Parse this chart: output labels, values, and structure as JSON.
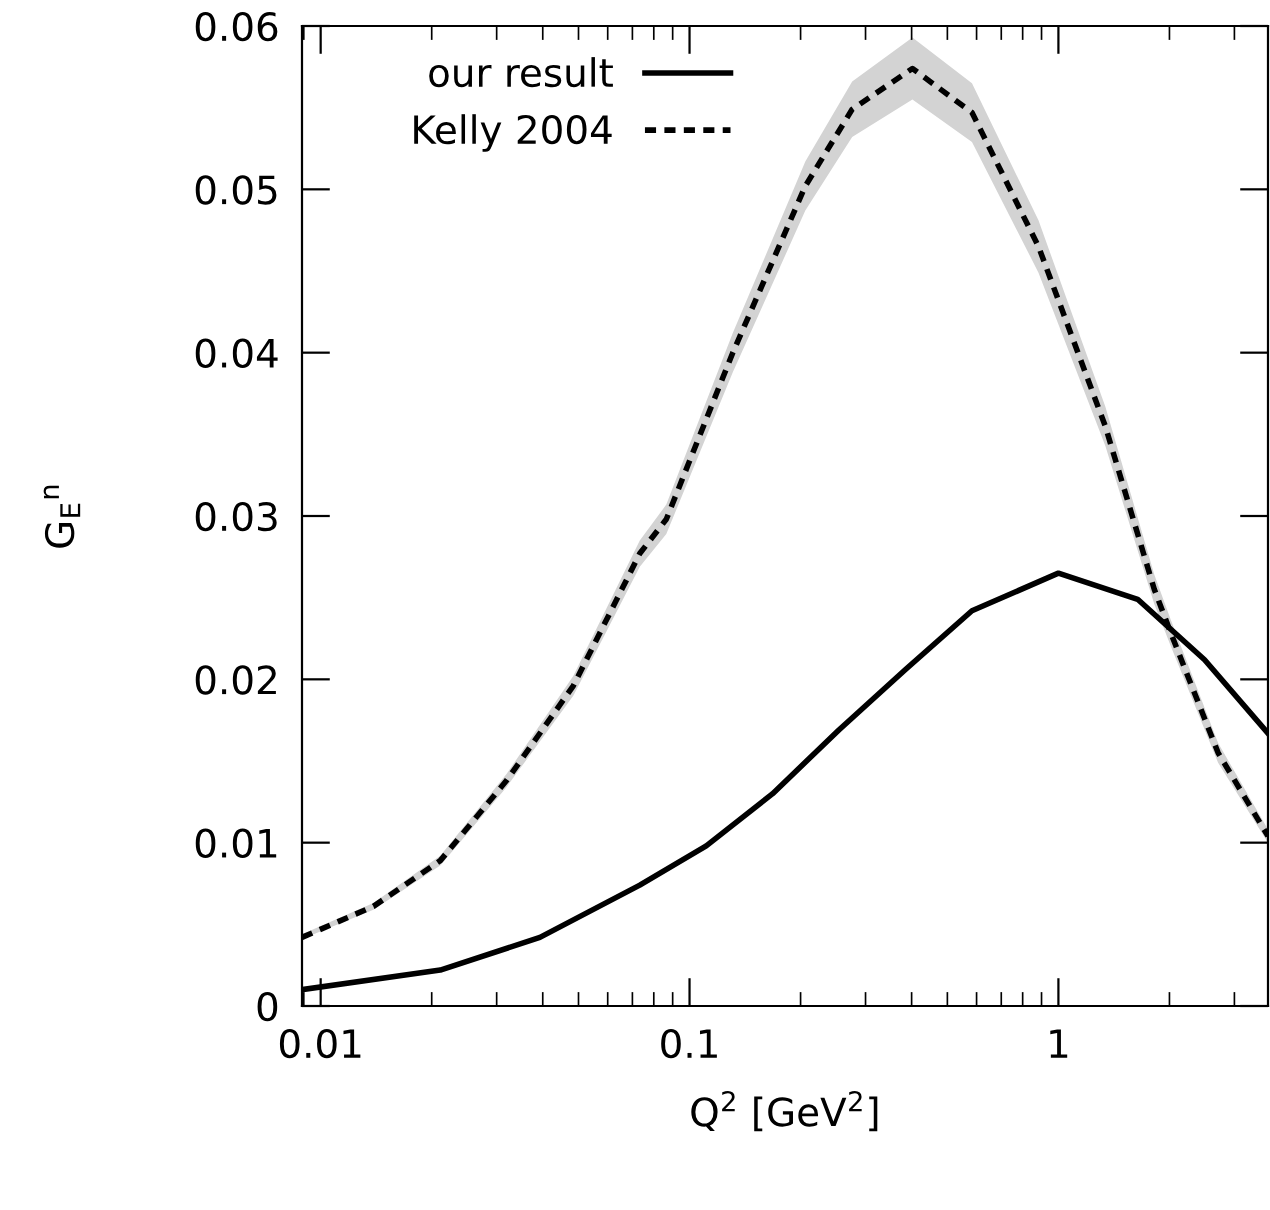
{
  "chart_data": {
    "type": "line",
    "xlabel": "Q$^{2}$ [GeV$^{2}$]",
    "ylabel": "G$_{E}$$^{n}$",
    "log": "x",
    "xlim": [
      0.0089,
      3.7
    ],
    "ylim": [
      0,
      0.06
    ],
    "xticks": [
      0.01,
      0.1,
      1
    ],
    "yticks": [
      0,
      0.01,
      0.02,
      0.03,
      0.04,
      0.05,
      0.06
    ],
    "grid": false,
    "legend": "top left",
    "marker": "none",
    "series": [
      {
        "name": "our result",
        "color": "#000000",
        "line_style": "solid",
        "x": [
          0.0089,
          0.0211,
          0.0393,
          0.0733,
          0.111,
          0.168,
          0.254,
          0.385,
          0.583,
          1,
          1.64,
          2.49,
          3.7
        ],
        "values": [
          0.001,
          0.0022,
          0.0042,
          0.0074,
          0.0098,
          0.013,
          0.0169,
          0.0206,
          0.0242,
          0.0265,
          0.0249,
          0.0212,
          0.0167
        ]
      },
      {
        "name": "Kelly 2004",
        "color": "#000000",
        "line_style": "dotted",
        "x": [
          0.0089,
          0.0139,
          0.0211,
          0.0319,
          0.0484,
          0.0733,
          0.0865,
          0.131,
          0.206,
          0.276,
          0.402,
          0.583,
          0.883,
          1.34,
          1.82,
          2.02,
          2.71,
          3.7
        ],
        "values": [
          0.0042,
          0.0061,
          0.0089,
          0.0138,
          0.0196,
          0.0277,
          0.0298,
          0.04,
          0.0502,
          0.0549,
          0.0574,
          0.0547,
          0.0465,
          0.0355,
          0.0255,
          0.0228,
          0.0155,
          0.0104
        ],
        "lower": [
          0.0041,
          0.0059,
          0.0086,
          0.0134,
          0.019,
          0.0269,
          0.0289,
          0.0388,
          0.0487,
          0.0532,
          0.0555,
          0.0529,
          0.0449,
          0.0343,
          0.0246,
          0.022,
          0.0149,
          0.01
        ],
        "upper": [
          0.0044,
          0.0063,
          0.0092,
          0.0142,
          0.0202,
          0.0285,
          0.0307,
          0.0412,
          0.0517,
          0.0566,
          0.0593,
          0.0565,
          0.0481,
          0.0367,
          0.0264,
          0.0236,
          0.0161,
          0.0108
        ]
      }
    ]
  }
}
